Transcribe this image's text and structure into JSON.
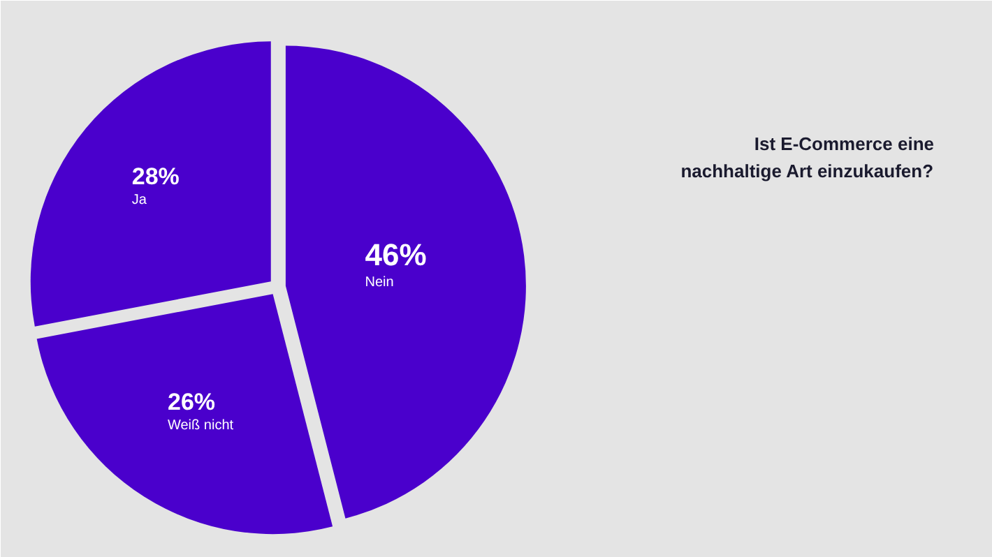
{
  "chart_data": {
    "type": "pie",
    "title": "Ist E-Commerce eine\nnachhaltige Art einzukaufen?",
    "categories": [
      "Nein",
      "Weiß nicht",
      "Ja"
    ],
    "values": [
      46,
      26,
      28
    ],
    "value_labels": [
      "46%",
      "26%",
      "28%"
    ],
    "colors": [
      "#4a00cc",
      "#4a00cc",
      "#4a00cc"
    ]
  }
}
